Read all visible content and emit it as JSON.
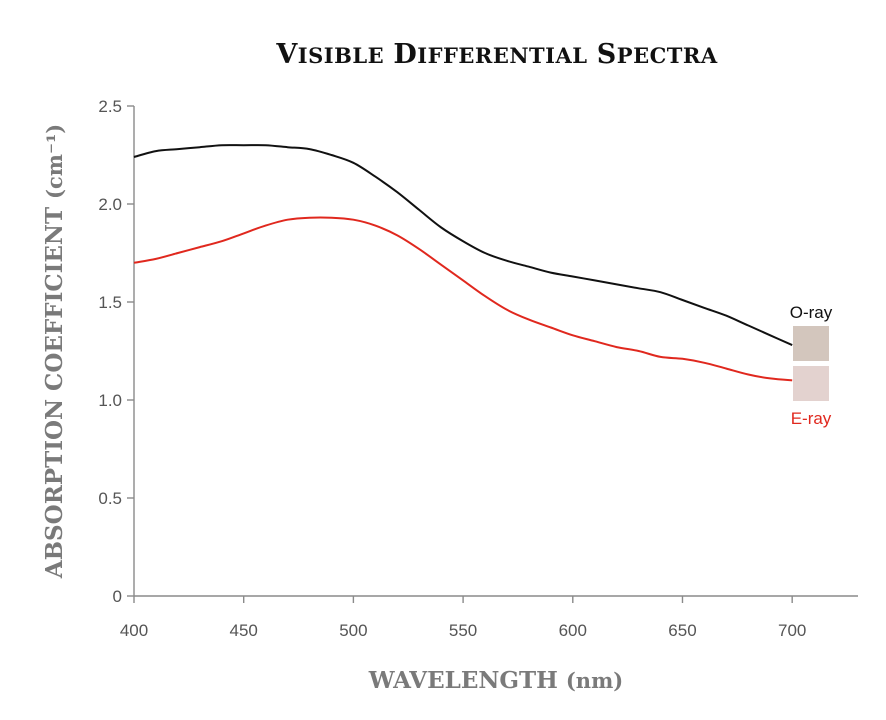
{
  "colors": {
    "o_ray": "#111111",
    "e_ray": "#e0281e",
    "o_ray_swatch": "#d3c6bd",
    "e_ray_swatch": "#e3d2cf",
    "axis": "#8a8a8a"
  },
  "chart_data": {
    "type": "line",
    "title": "Visible Differential Spectra",
    "xlabel": "WAVELENGTH (nm)",
    "ylabel": "ABSORPTION COEFFICIENT (cm⁻¹)",
    "xlim": [
      400,
      730
    ],
    "ylim": [
      0,
      2.5
    ],
    "xticks": [
      "400",
      "450",
      "500",
      "550",
      "600",
      "650",
      "700"
    ],
    "yticks": [
      "0",
      "0.5",
      "1.0",
      "1.5",
      "2.0",
      "2.5"
    ],
    "grid": false,
    "legend_position": "right",
    "series": [
      {
        "name": "O-ray",
        "x": [
          400,
          410,
          420,
          430,
          440,
          450,
          460,
          470,
          480,
          490,
          500,
          510,
          520,
          530,
          540,
          550,
          560,
          570,
          580,
          590,
          600,
          610,
          620,
          630,
          640,
          650,
          660,
          670,
          680,
          690,
          700
        ],
        "y": [
          2.24,
          2.27,
          2.28,
          2.29,
          2.3,
          2.3,
          2.3,
          2.29,
          2.28,
          2.25,
          2.21,
          2.14,
          2.06,
          1.97,
          1.88,
          1.81,
          1.75,
          1.71,
          1.68,
          1.65,
          1.63,
          1.61,
          1.59,
          1.57,
          1.55,
          1.51,
          1.47,
          1.43,
          1.38,
          1.33,
          1.28
        ]
      },
      {
        "name": "E-ray",
        "x": [
          400,
          410,
          420,
          430,
          440,
          450,
          460,
          470,
          480,
          490,
          500,
          510,
          520,
          530,
          540,
          550,
          560,
          570,
          580,
          590,
          600,
          610,
          620,
          630,
          640,
          650,
          660,
          670,
          680,
          690,
          700
        ],
        "y": [
          1.7,
          1.72,
          1.75,
          1.78,
          1.81,
          1.85,
          1.89,
          1.92,
          1.93,
          1.93,
          1.92,
          1.89,
          1.84,
          1.77,
          1.69,
          1.61,
          1.53,
          1.46,
          1.41,
          1.37,
          1.33,
          1.3,
          1.27,
          1.25,
          1.22,
          1.21,
          1.19,
          1.16,
          1.13,
          1.11,
          1.1
        ]
      }
    ]
  }
}
